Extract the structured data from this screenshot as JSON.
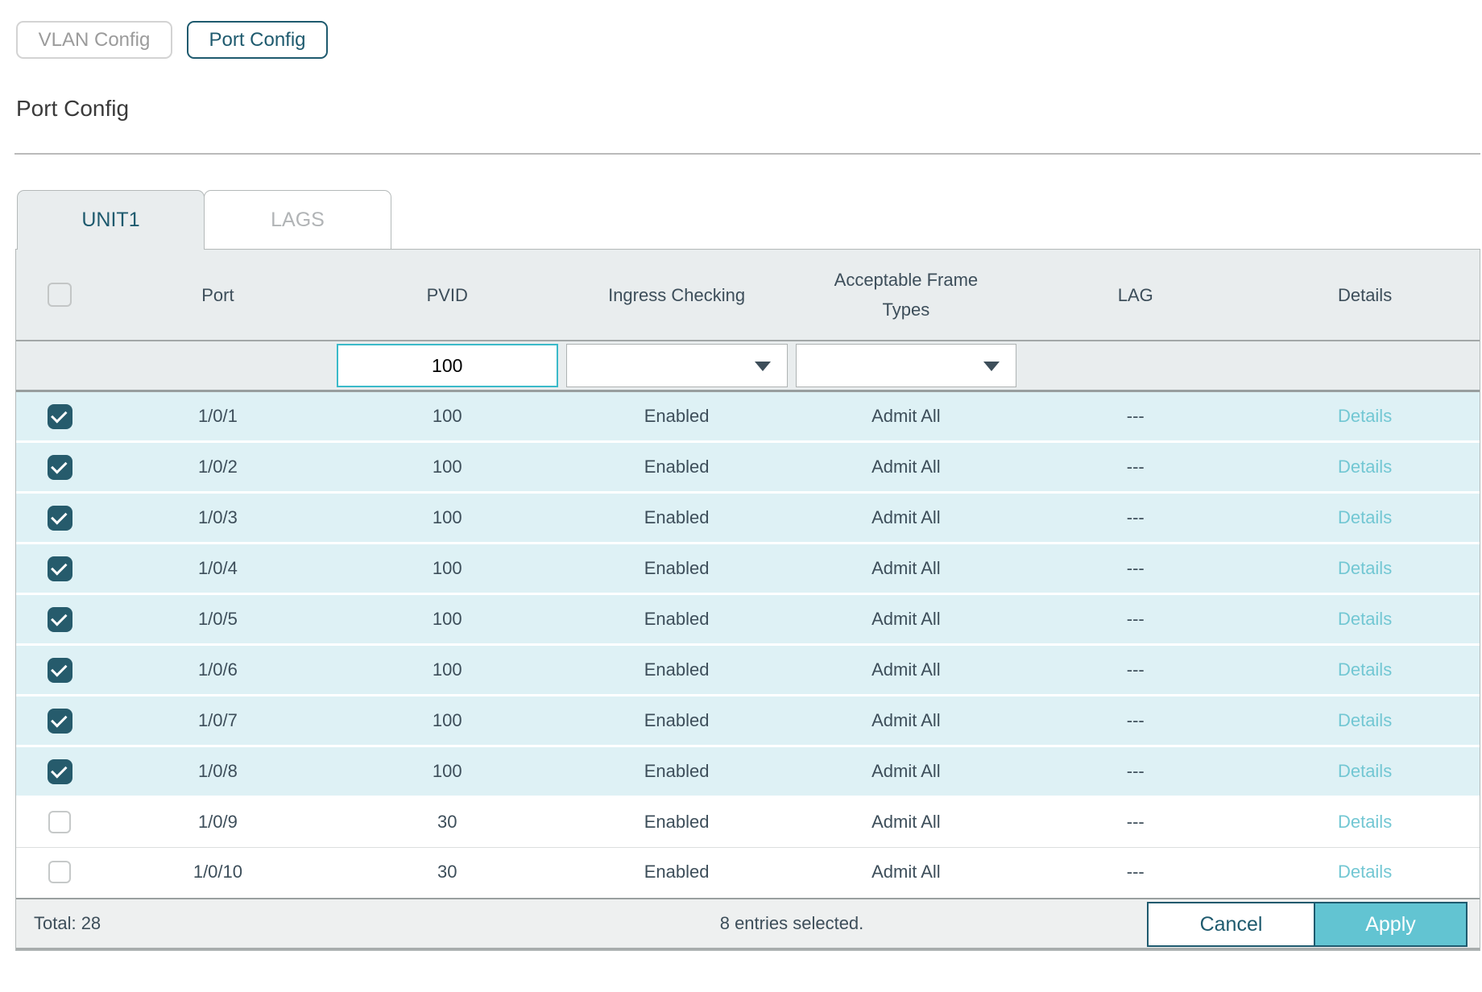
{
  "view_switcher": {
    "vlan_config_label": "VLAN Config",
    "port_config_label": "Port Config"
  },
  "page": {
    "title": "Port Config"
  },
  "tabs": [
    {
      "label": "UNIT1",
      "active": true
    },
    {
      "label": "LAGS",
      "active": false
    }
  ],
  "table": {
    "columns": [
      "",
      "Port",
      "PVID",
      "Ingress Checking",
      "Acceptable Frame Types",
      "LAG",
      "Details"
    ],
    "filter": {
      "pvid_value": "100"
    },
    "rows": [
      {
        "selected": true,
        "port": "1/0/1",
        "pvid": "100",
        "ingress": "Enabled",
        "frame": "Admit All",
        "lag": "---",
        "details": "Details"
      },
      {
        "selected": true,
        "port": "1/0/2",
        "pvid": "100",
        "ingress": "Enabled",
        "frame": "Admit All",
        "lag": "---",
        "details": "Details"
      },
      {
        "selected": true,
        "port": "1/0/3",
        "pvid": "100",
        "ingress": "Enabled",
        "frame": "Admit All",
        "lag": "---",
        "details": "Details"
      },
      {
        "selected": true,
        "port": "1/0/4",
        "pvid": "100",
        "ingress": "Enabled",
        "frame": "Admit All",
        "lag": "---",
        "details": "Details"
      },
      {
        "selected": true,
        "port": "1/0/5",
        "pvid": "100",
        "ingress": "Enabled",
        "frame": "Admit All",
        "lag": "---",
        "details": "Details"
      },
      {
        "selected": true,
        "port": "1/0/6",
        "pvid": "100",
        "ingress": "Enabled",
        "frame": "Admit All",
        "lag": "---",
        "details": "Details"
      },
      {
        "selected": true,
        "port": "1/0/7",
        "pvid": "100",
        "ingress": "Enabled",
        "frame": "Admit All",
        "lag": "---",
        "details": "Details"
      },
      {
        "selected": true,
        "port": "1/0/8",
        "pvid": "100",
        "ingress": "Enabled",
        "frame": "Admit All",
        "lag": "---",
        "details": "Details"
      },
      {
        "selected": false,
        "port": "1/0/9",
        "pvid": "30",
        "ingress": "Enabled",
        "frame": "Admit All",
        "lag": "---",
        "details": "Details"
      },
      {
        "selected": false,
        "port": "1/0/10",
        "pvid": "30",
        "ingress": "Enabled",
        "frame": "Admit All",
        "lag": "---",
        "details": "Details"
      }
    ],
    "footer": {
      "total": "Total: 28",
      "selected_info": "8 entries selected.",
      "cancel_label": "Cancel",
      "apply_label": "Apply"
    }
  },
  "colors": {
    "accent_teal": "#1e5a6e",
    "apply_button_bg": "#62c4d2",
    "details_link": "#72c7d3",
    "selected_row_bg": "#def1f5",
    "header_bg": "#e9edee",
    "checkbox_checked_bg": "#265b6c"
  }
}
